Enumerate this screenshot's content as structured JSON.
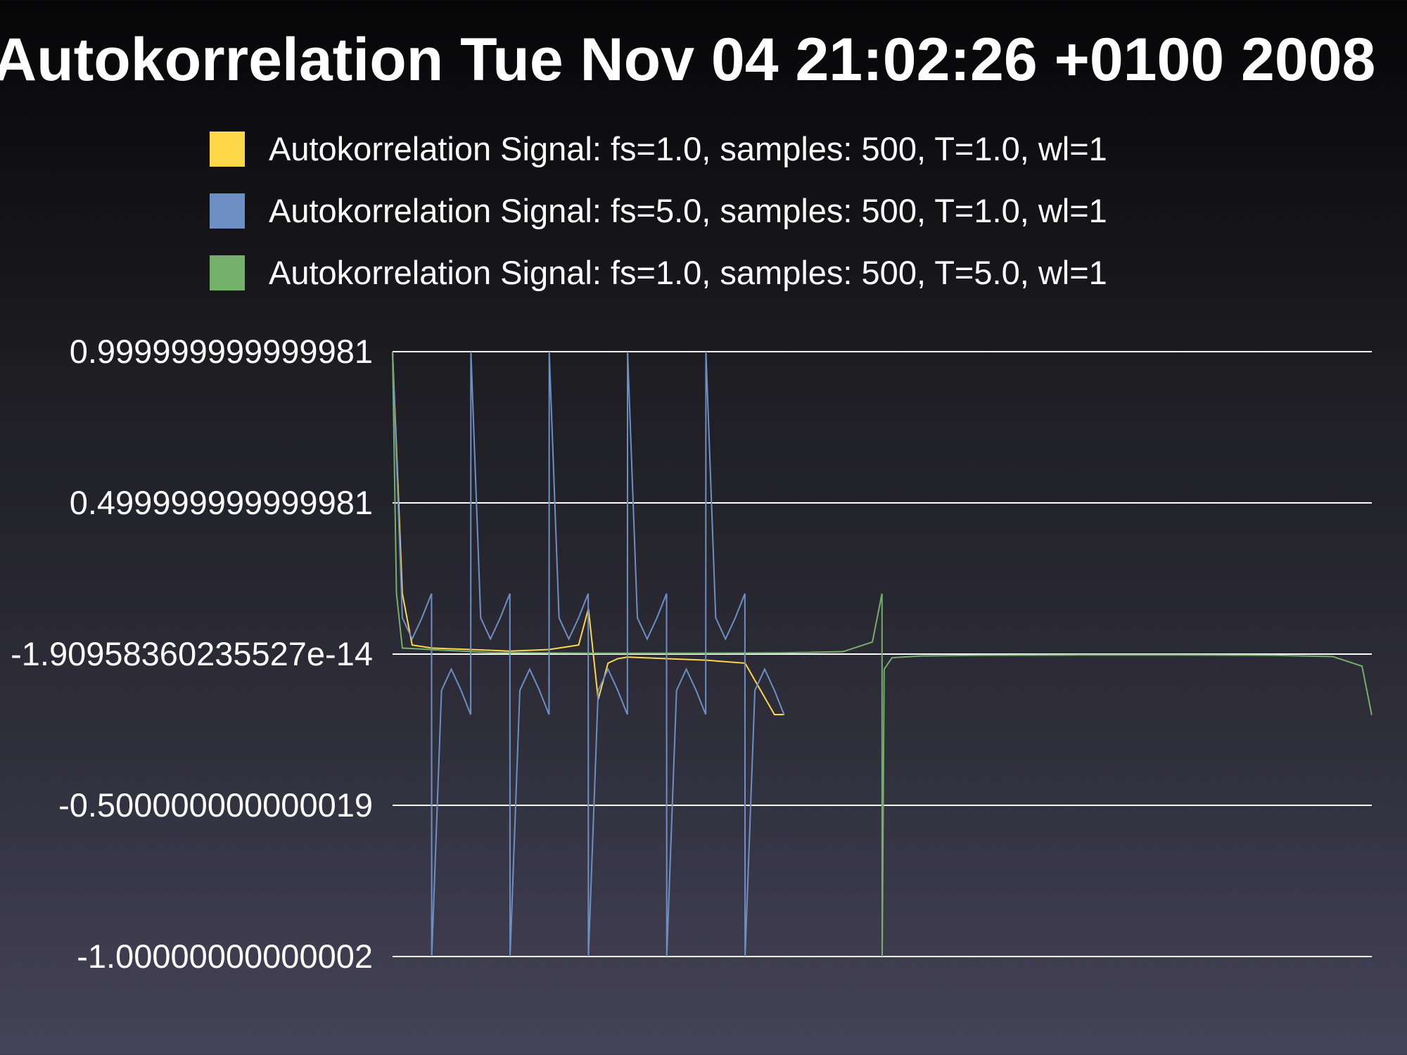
{
  "chart_data": {
    "type": "line",
    "title": "Autokorrelation Tue Nov 04 21:02:26 +0100 2008",
    "xlabel": "",
    "ylabel": "",
    "ylim": [
      -1.00000000000002,
      0.999999999999981
    ],
    "grid": true,
    "legend_position": "top",
    "y_ticks": [
      "0.999999999999981",
      "0.499999999999981",
      "-1.90958360235527e-14",
      "-0.500000000000019",
      "-1.00000000000002"
    ],
    "y_tick_values": [
      0.999999999999981,
      0.499999999999981,
      -1.90958360235527e-14,
      -0.500000000000019,
      -1.00000000000002
    ],
    "series": [
      {
        "name": "Autokorrelation Signal: fs=1.0, samples: 500, T=1.0, wl=1",
        "color": "#ffd84a",
        "x": [
          0,
          5,
          10,
          20,
          40,
          60,
          80,
          95,
          100,
          105,
          110,
          115,
          120,
          140,
          160,
          180,
          195,
          200
        ],
        "values": [
          1.0,
          0.2,
          0.03,
          0.02,
          0.015,
          0.01,
          0.015,
          0.03,
          0.15,
          -0.15,
          -0.03,
          -0.015,
          -0.01,
          -0.015,
          -0.02,
          -0.03,
          -0.2,
          -0.2
        ]
      },
      {
        "name": "Autokorrelation Signal: fs=5.0, samples: 500, T=1.0, wl=1",
        "color": "#6e8fc4",
        "x": [
          0,
          5,
          10,
          15,
          19.9,
          20,
          25,
          30,
          35,
          39.9,
          40,
          45,
          50,
          55,
          59.9,
          60,
          65,
          70,
          75,
          79.9,
          80,
          85,
          90,
          95,
          99.9,
          100,
          105,
          110,
          115,
          119.9,
          120,
          125,
          130,
          135,
          139.9,
          140,
          145,
          150,
          155,
          159.9,
          160,
          165,
          170,
          175,
          179.9,
          180,
          185,
          190,
          195,
          199.9,
          200
        ],
        "values": [
          1.0,
          0.12,
          0.05,
          0.12,
          0.2,
          -1.0,
          -0.12,
          -0.05,
          -0.12,
          -0.2,
          1.0,
          0.12,
          0.05,
          0.12,
          0.2,
          -1.0,
          -0.12,
          -0.05,
          -0.12,
          -0.2,
          1.0,
          0.12,
          0.05,
          0.12,
          0.2,
          -1.0,
          -0.12,
          -0.05,
          -0.12,
          -0.2,
          1.0,
          0.12,
          0.05,
          0.12,
          0.2,
          -1.0,
          -0.12,
          -0.05,
          -0.12,
          -0.2,
          1.0,
          0.12,
          0.05,
          0.12,
          0.2,
          -1.0,
          -0.12,
          -0.05,
          -0.12,
          -0.2,
          -0.2
        ]
      },
      {
        "name": "Autokorrelation Signal: fs=1.0, samples: 500, T=5.0, wl=1",
        "color": "#74b06a",
        "x": [
          0,
          2,
          5,
          50,
          100,
          150,
          200,
          230,
          245,
          249.9,
          250,
          251,
          255,
          270,
          300,
          350,
          400,
          450,
          480,
          495,
          499.9,
          500
        ],
        "values": [
          1.0,
          0.2,
          0.02,
          0.005,
          0.003,
          0.003,
          0.004,
          0.008,
          0.04,
          0.2,
          -1.0,
          -0.05,
          -0.012,
          -0.006,
          -0.004,
          -0.003,
          -0.003,
          -0.004,
          -0.008,
          -0.04,
          -0.2,
          -0.2
        ]
      }
    ]
  }
}
